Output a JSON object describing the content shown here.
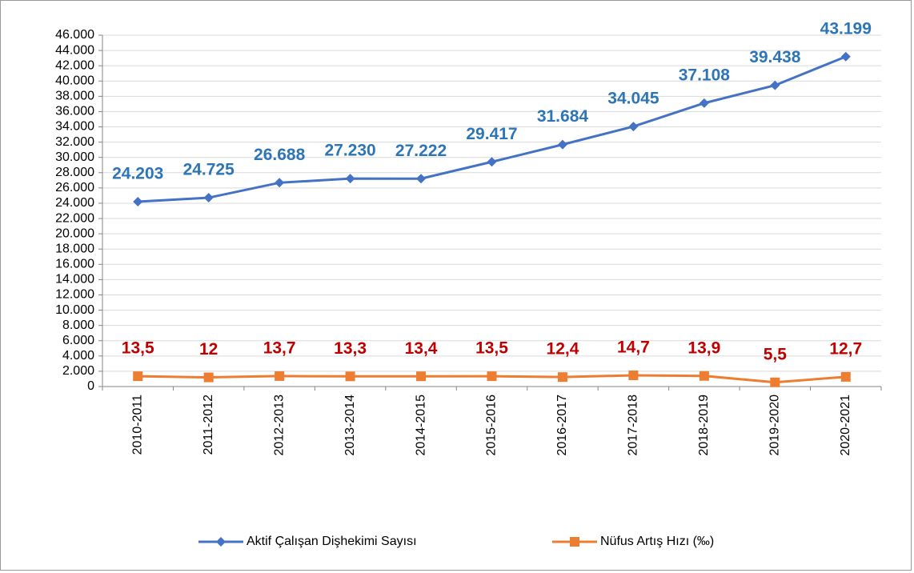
{
  "chart_data": {
    "type": "line",
    "categories": [
      "2010-2011",
      "2011-2012",
      "2012-2013",
      "2013-2014",
      "2014-2015",
      "2015-2016",
      "2016-2017",
      "2017-2018",
      "2018-2019",
      "2019-2020",
      "2020-2021"
    ],
    "series": [
      {
        "name": "Aktif Çalışan Dişhekimi Sayısı",
        "color": "#4472c4",
        "label_color": "#2e75b6",
        "marker": "diamond",
        "values": [
          24203,
          24725,
          26688,
          27230,
          27222,
          29417,
          31684,
          34045,
          37108,
          39438,
          43199
        ],
        "value_labels": [
          "24.203",
          "24.725",
          "26.688",
          "27.230",
          "27.222",
          "29.417",
          "31.684",
          "34.045",
          "37.108",
          "39.438",
          "43.199"
        ]
      },
      {
        "name": "Nüfus Artış Hızı (‰)",
        "color": "#ed7d31",
        "label_color": "#c00000",
        "marker": "square",
        "axis": "y2",
        "values": [
          13.5,
          12,
          13.7,
          13.3,
          13.4,
          13.5,
          12.4,
          14.7,
          13.9,
          5.5,
          12.7
        ],
        "value_labels": [
          "13,5",
          "12",
          "13,7",
          "13,3",
          "13,4",
          "13,5",
          "12,4",
          "14,7",
          "13,9",
          "5,5",
          "12,7"
        ]
      }
    ],
    "ylim": [
      0,
      46000
    ],
    "y2lim": [
      0,
      460
    ],
    "yticks": [
      0,
      {
        "value": 2000,
        "label": "2.000"
      },
      {
        "value": 4000,
        "label": "4.000"
      },
      {
        "value": 6000,
        "label": "6.000"
      },
      {
        "value": 8000,
        "label": "8.000"
      },
      {
        "value": 10000,
        "label": "10.000"
      },
      {
        "value": 12000,
        "label": "12.000"
      },
      {
        "value": 14000,
        "label": "14.000"
      },
      {
        "value": 16000,
        "label": "16.000"
      },
      {
        "value": 18000,
        "label": "18.000"
      },
      {
        "value": 20000,
        "label": "20.000"
      },
      {
        "value": 22000,
        "label": "22.000"
      },
      {
        "value": 24000,
        "label": "24.000"
      },
      {
        "value": 26000,
        "label": "26.000"
      },
      {
        "value": 28000,
        "label": "28.000"
      },
      {
        "value": 30000,
        "label": "30.000"
      },
      {
        "value": 32000,
        "label": "32.000"
      },
      {
        "value": 34000,
        "label": "34.000"
      },
      {
        "value": 36000,
        "label": "36.000"
      },
      {
        "value": 38000,
        "label": "38.000"
      },
      {
        "value": 40000,
        "label": "40.000"
      },
      {
        "value": 42000,
        "label": "42.000"
      },
      {
        "value": 44000,
        "label": "44.000"
      },
      {
        "value": 46000,
        "label": "46.000"
      }
    ],
    "grid": true,
    "legend": "bottom"
  }
}
